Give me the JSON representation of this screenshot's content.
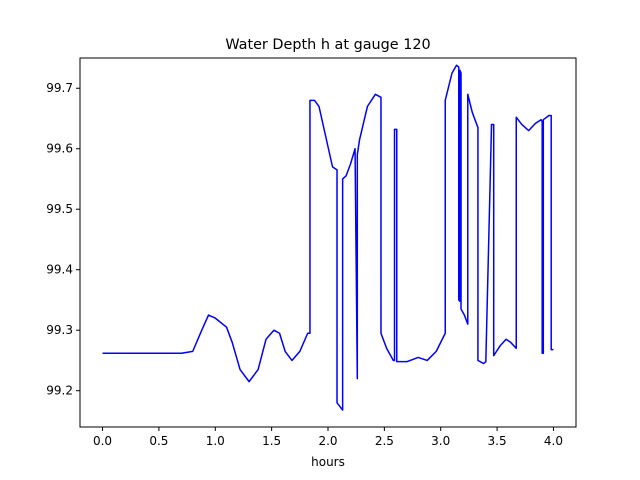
{
  "chart_data": {
    "type": "line",
    "title": "Water Depth h at gauge 120",
    "xlabel": "hours",
    "ylabel": "",
    "xlim": [
      -0.2,
      4.2
    ],
    "ylim": [
      99.14,
      99.75
    ],
    "grid": false,
    "legend": "none",
    "x_ticks": [
      0.0,
      0.5,
      1.0,
      1.5,
      2.0,
      2.5,
      3.0,
      3.5,
      4.0
    ],
    "x_tick_labels": [
      "0.0",
      "0.5",
      "1.0",
      "1.5",
      "2.0",
      "2.5",
      "3.0",
      "3.5",
      "4.0"
    ],
    "y_ticks": [
      99.2,
      99.3,
      99.4,
      99.5,
      99.6,
      99.7
    ],
    "y_tick_labels": [
      "99.2",
      "99.3",
      "99.4",
      "99.5",
      "99.6",
      "99.7"
    ],
    "series": [
      {
        "color": "#0000ff",
        "x": [
          0.0,
          0.3,
          0.7,
          0.8,
          0.88,
          0.94,
          1.0,
          1.1,
          1.15,
          1.22,
          1.3,
          1.38,
          1.45,
          1.52,
          1.57,
          1.62,
          1.68,
          1.75,
          1.82,
          1.84,
          1.84,
          1.88,
          1.92,
          1.98,
          2.04,
          2.08,
          2.08,
          2.13,
          2.13,
          2.16,
          2.2,
          2.24,
          2.26,
          2.26,
          2.28,
          2.35,
          2.42,
          2.47,
          2.47,
          2.52,
          2.58,
          2.59,
          2.59,
          2.61,
          2.61,
          2.7,
          2.8,
          2.88,
          2.96,
          3.04,
          3.04,
          3.1,
          3.14,
          3.16,
          3.16,
          3.17,
          3.17,
          3.18,
          3.18,
          3.21,
          3.24,
          3.24,
          3.28,
          3.33,
          3.33,
          3.38,
          3.4,
          3.45,
          3.45,
          3.47,
          3.47,
          3.53,
          3.58,
          3.62,
          3.67,
          3.67,
          3.72,
          3.78,
          3.84,
          3.89,
          3.9,
          3.9,
          3.91,
          3.91,
          3.96,
          3.98,
          3.98,
          4.0
        ],
        "y": [
          99.262,
          99.262,
          99.262,
          99.265,
          99.3,
          99.325,
          99.32,
          99.305,
          99.28,
          99.235,
          99.215,
          99.235,
          99.285,
          99.3,
          99.295,
          99.265,
          99.25,
          99.265,
          99.295,
          99.295,
          99.68,
          99.68,
          99.67,
          99.62,
          99.57,
          99.565,
          99.18,
          99.168,
          99.55,
          99.555,
          99.575,
          99.6,
          99.22,
          99.59,
          99.615,
          99.67,
          99.69,
          99.685,
          99.295,
          99.27,
          99.25,
          99.25,
          99.632,
          99.632,
          99.248,
          99.248,
          99.255,
          99.25,
          99.265,
          99.295,
          99.68,
          99.725,
          99.738,
          99.735,
          99.35,
          99.348,
          99.73,
          99.725,
          99.335,
          99.325,
          99.31,
          99.69,
          99.66,
          99.635,
          99.25,
          99.245,
          99.248,
          99.635,
          99.64,
          99.64,
          99.258,
          99.275,
          99.285,
          99.28,
          99.27,
          99.652,
          99.64,
          99.63,
          99.642,
          99.648,
          99.645,
          99.262,
          99.262,
          99.648,
          99.655,
          99.655,
          99.268,
          99.268
        ]
      }
    ]
  }
}
